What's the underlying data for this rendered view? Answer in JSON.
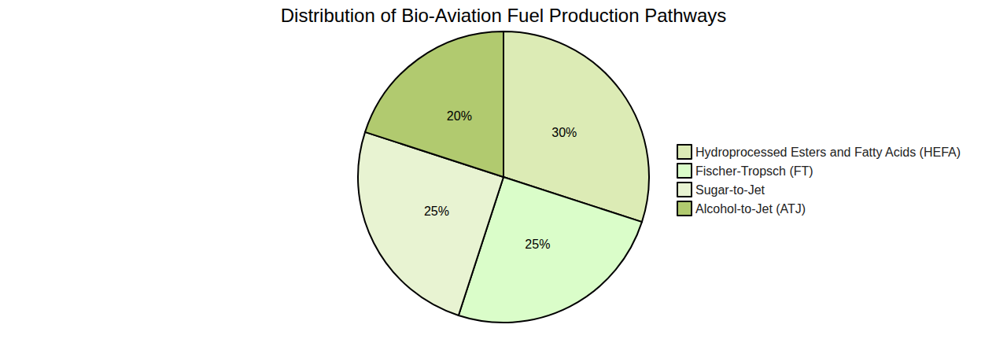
{
  "chart_data": {
    "type": "pie",
    "title": "Distribution of Bio-Aviation Fuel Production Pathways",
    "categories": [
      "Hydroprocessed Esters and Fatty Acids (HEFA)",
      "Fischer-Tropsch (FT)",
      "Sugar-to-Jet",
      "Alcohol-to-Jet (ATJ)"
    ],
    "values": [
      30,
      25,
      25,
      20
    ],
    "value_labels": [
      "30%",
      "25%",
      "25%",
      "20%"
    ],
    "colors": [
      "#dcebb5",
      "#dafdc9",
      "#e8f3d2",
      "#b1ca6f"
    ],
    "data_labels": true,
    "legend": "right"
  }
}
